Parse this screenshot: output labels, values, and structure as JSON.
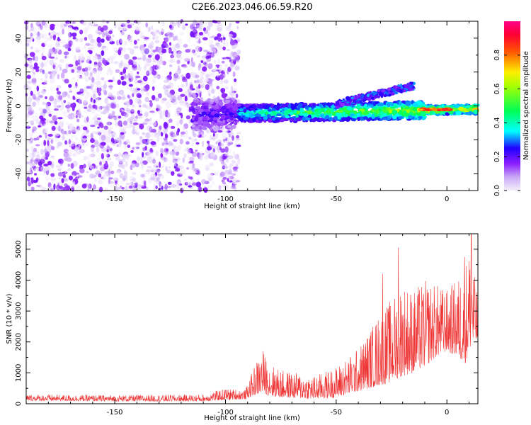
{
  "title": "C2E6.2023.046.06.59.R20",
  "colors": {
    "snr_line": "#ee3333",
    "frame": "#000000"
  },
  "chart_data": [
    {
      "type": "heatmap",
      "xlabel": "Height of straight line (km)",
      "ylabel": "Frequency (Hz)",
      "xlim": [
        -190,
        14
      ],
      "ylim": [
        -50,
        50
      ],
      "xticks": [
        -150,
        -100,
        -50,
        0
      ],
      "yticks": [
        -40,
        -20,
        0,
        20,
        40
      ],
      "colorbar": {
        "label": "Normalized spectral amplitude",
        "range": [
          0,
          1
        ],
        "ticks": [
          0.0,
          0.2,
          0.4,
          0.6,
          0.8
        ],
        "colormap": [
          "#f3ecfb",
          "#7700ff",
          "#0000ff",
          "#00ffff",
          "#00ff00",
          "#ffff00",
          "#ff0000",
          "#ff0088"
        ]
      },
      "regions": [
        {
          "description": "noise",
          "x_range": [
            -190,
            -96
          ],
          "freq_range": [
            -50,
            50
          ],
          "amplitude": 0.15
        },
        {
          "description": "main echo band",
          "x_range": [
            -115,
            14
          ],
          "freq_center_start": -5,
          "freq_center_end": -2,
          "amplitude_start": 0.2,
          "amplitude_end": 0.9
        },
        {
          "description": "upper branch",
          "x_range": [
            -50,
            -15
          ],
          "freq_center_start": 1,
          "freq_center_end": 12,
          "amplitude": 0.25
        }
      ]
    },
    {
      "type": "line",
      "xlabel": "Height of straight line (km)",
      "ylabel": "SNR (10 * v/v)",
      "xlim": [
        -190,
        14
      ],
      "ylim": [
        0,
        5500
      ],
      "xticks": [
        -150,
        -100,
        -50,
        0
      ],
      "yticks": [
        0,
        1000,
        2000,
        3000,
        4000,
        5000
      ],
      "envelope": {
        "x": [
          -190,
          -150,
          -110,
          -100,
          -91,
          -86,
          -83,
          -80,
          -75,
          -68,
          -60,
          -50,
          -45,
          -40,
          -35,
          -30,
          -25,
          -20,
          -15,
          -10,
          -5,
          0,
          5,
          8,
          10,
          11,
          12,
          14
        ],
        "y_min": [
          100,
          80,
          80,
          120,
          150,
          300,
          350,
          250,
          200,
          180,
          150,
          200,
          300,
          400,
          500,
          600,
          700,
          900,
          1000,
          1200,
          1500,
          1700,
          1500,
          1300,
          1500,
          2000,
          1800,
          2000
        ],
        "y_max": [
          300,
          280,
          300,
          500,
          450,
          1400,
          1700,
          1300,
          1100,
          1000,
          900,
          1200,
          1500,
          1800,
          2400,
          3000,
          3400,
          4000,
          3700,
          4000,
          3900,
          3700,
          4100,
          4500,
          5100,
          5500,
          4400,
          3500
        ]
      },
      "peaks": [
        {
          "x": -83,
          "y": 1700
        },
        {
          "x": -22,
          "y": 5050
        },
        {
          "x": -29,
          "y": 4200
        },
        {
          "x": 8,
          "y": 4750
        },
        {
          "x": 11,
          "y": 5500
        }
      ]
    }
  ]
}
